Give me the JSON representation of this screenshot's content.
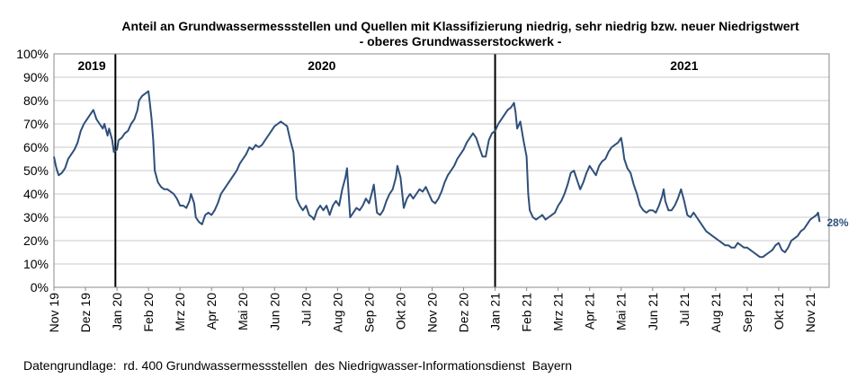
{
  "chart_data": {
    "type": "line",
    "title": "Anteil an Grundwassermessstellen und Quellen mit Klassifizierung niedrig, sehr niedrig bzw. neuer Niedrigstwert",
    "subtitle": "- oberes Grundwasserstockwerk -",
    "xlabel": "",
    "ylabel": "",
    "ylim": [
      0,
      100
    ],
    "yticks": [
      "0%",
      "10%",
      "20%",
      "30%",
      "40%",
      "50%",
      "60%",
      "70%",
      "80%",
      "90%",
      "100%"
    ],
    "xticks": [
      "Nov 19",
      "Dez 19",
      "Jan 20",
      "Feb 20",
      "Mrz 20",
      "Apr 20",
      "Mai 20",
      "Jun 20",
      "Jul 20",
      "Aug 20",
      "Sep 20",
      "Okt 20",
      "Nov 20",
      "Dez 20",
      "Jan 21",
      "Feb 21",
      "Mrz 21",
      "Apr 21",
      "Mai 21",
      "Jun 21",
      "Jul 21",
      "Aug 21",
      "Sep 21",
      "Okt 21",
      "Nov 21"
    ],
    "x_unit": "months since 2019-11-01",
    "year_markers": [
      {
        "label": "2019",
        "x": 1.95
      },
      {
        "label": "2020",
        "x": 14.0
      }
    ],
    "year_labels": [
      {
        "label": "2019",
        "x": 1.2
      },
      {
        "label": "2020",
        "x": 8.5
      },
      {
        "label": "2021",
        "x": 20.0
      }
    ],
    "end_label": "28%",
    "grid": true,
    "color": "#2f4f7a",
    "series": [
      {
        "name": "",
        "points": [
          [
            0.0,
            56
          ],
          [
            0.06,
            52
          ],
          [
            0.1,
            50
          ],
          [
            0.15,
            48
          ],
          [
            0.25,
            49
          ],
          [
            0.35,
            51
          ],
          [
            0.45,
            55
          ],
          [
            0.55,
            57
          ],
          [
            0.65,
            59
          ],
          [
            0.75,
            62
          ],
          [
            0.85,
            67
          ],
          [
            0.95,
            70
          ],
          [
            1.05,
            72
          ],
          [
            1.15,
            74
          ],
          [
            1.25,
            76
          ],
          [
            1.35,
            72
          ],
          [
            1.45,
            70
          ],
          [
            1.55,
            68
          ],
          [
            1.6,
            70
          ],
          [
            1.7,
            65
          ],
          [
            1.75,
            68
          ],
          [
            1.85,
            63
          ],
          [
            1.9,
            58
          ],
          [
            2.0,
            59
          ],
          [
            2.05,
            63
          ],
          [
            2.15,
            64
          ],
          [
            2.25,
            66
          ],
          [
            2.35,
            67
          ],
          [
            2.45,
            70
          ],
          [
            2.55,
            72
          ],
          [
            2.65,
            76
          ],
          [
            2.7,
            80
          ],
          [
            2.8,
            82
          ],
          [
            2.9,
            83
          ],
          [
            3.0,
            84
          ],
          [
            3.05,
            78
          ],
          [
            3.1,
            72
          ],
          [
            3.15,
            63
          ],
          [
            3.2,
            50
          ],
          [
            3.3,
            45
          ],
          [
            3.4,
            43
          ],
          [
            3.5,
            42
          ],
          [
            3.6,
            42
          ],
          [
            3.7,
            41
          ],
          [
            3.8,
            40
          ],
          [
            3.9,
            38
          ],
          [
            4.0,
            35
          ],
          [
            4.1,
            35
          ],
          [
            4.2,
            34
          ],
          [
            4.3,
            37
          ],
          [
            4.35,
            40
          ],
          [
            4.45,
            36
          ],
          [
            4.5,
            30
          ],
          [
            4.6,
            28
          ],
          [
            4.7,
            27
          ],
          [
            4.8,
            31
          ],
          [
            4.9,
            32
          ],
          [
            5.0,
            31
          ],
          [
            5.1,
            33
          ],
          [
            5.2,
            36
          ],
          [
            5.3,
            40
          ],
          [
            5.4,
            42
          ],
          [
            5.5,
            44
          ],
          [
            5.6,
            46
          ],
          [
            5.7,
            48
          ],
          [
            5.8,
            50
          ],
          [
            5.9,
            53
          ],
          [
            6.0,
            55
          ],
          [
            6.1,
            57
          ],
          [
            6.2,
            60
          ],
          [
            6.3,
            59
          ],
          [
            6.4,
            61
          ],
          [
            6.5,
            60
          ],
          [
            6.6,
            61
          ],
          [
            6.7,
            63
          ],
          [
            6.8,
            65
          ],
          [
            6.9,
            67
          ],
          [
            7.0,
            69
          ],
          [
            7.1,
            70
          ],
          [
            7.2,
            71
          ],
          [
            7.3,
            70
          ],
          [
            7.4,
            69
          ],
          [
            7.5,
            63
          ],
          [
            7.6,
            58
          ],
          [
            7.65,
            48
          ],
          [
            7.7,
            38
          ],
          [
            7.8,
            35
          ],
          [
            7.9,
            33
          ],
          [
            8.0,
            35
          ],
          [
            8.1,
            31
          ],
          [
            8.2,
            30
          ],
          [
            8.25,
            29
          ],
          [
            8.35,
            33
          ],
          [
            8.45,
            35
          ],
          [
            8.55,
            33
          ],
          [
            8.65,
            35
          ],
          [
            8.75,
            31
          ],
          [
            8.85,
            35
          ],
          [
            8.95,
            37
          ],
          [
            9.05,
            35
          ],
          [
            9.15,
            42
          ],
          [
            9.25,
            47
          ],
          [
            9.3,
            51
          ],
          [
            9.4,
            30
          ],
          [
            9.5,
            32
          ],
          [
            9.6,
            34
          ],
          [
            9.7,
            33
          ],
          [
            9.8,
            35
          ],
          [
            9.9,
            38
          ],
          [
            10.0,
            36
          ],
          [
            10.1,
            41
          ],
          [
            10.15,
            44
          ],
          [
            10.25,
            32
          ],
          [
            10.35,
            31
          ],
          [
            10.45,
            33
          ],
          [
            10.55,
            37
          ],
          [
            10.65,
            40
          ],
          [
            10.75,
            42
          ],
          [
            10.85,
            47
          ],
          [
            10.9,
            52
          ],
          [
            11.0,
            47
          ],
          [
            11.1,
            34
          ],
          [
            11.2,
            38
          ],
          [
            11.3,
            40
          ],
          [
            11.4,
            38
          ],
          [
            11.5,
            40
          ],
          [
            11.6,
            42
          ],
          [
            11.7,
            41
          ],
          [
            11.8,
            43
          ],
          [
            11.9,
            40
          ],
          [
            12.0,
            37
          ],
          [
            12.1,
            36
          ],
          [
            12.2,
            38
          ],
          [
            12.3,
            41
          ],
          [
            12.4,
            45
          ],
          [
            12.5,
            48
          ],
          [
            12.6,
            50
          ],
          [
            12.7,
            52
          ],
          [
            12.8,
            55
          ],
          [
            12.9,
            57
          ],
          [
            13.0,
            59
          ],
          [
            13.1,
            62
          ],
          [
            13.2,
            64
          ],
          [
            13.3,
            66
          ],
          [
            13.4,
            64
          ],
          [
            13.5,
            60
          ],
          [
            13.6,
            56
          ],
          [
            13.7,
            56
          ],
          [
            13.8,
            63
          ],
          [
            13.9,
            66
          ],
          [
            14.0,
            67
          ],
          [
            14.1,
            70
          ],
          [
            14.2,
            72
          ],
          [
            14.3,
            74
          ],
          [
            14.4,
            76
          ],
          [
            14.5,
            77
          ],
          [
            14.6,
            79
          ],
          [
            14.65,
            75
          ],
          [
            14.7,
            68
          ],
          [
            14.8,
            71
          ],
          [
            14.9,
            63
          ],
          [
            15.0,
            56
          ],
          [
            15.05,
            40
          ],
          [
            15.1,
            33
          ],
          [
            15.2,
            30
          ],
          [
            15.3,
            29
          ],
          [
            15.4,
            30
          ],
          [
            15.5,
            31
          ],
          [
            15.6,
            29
          ],
          [
            15.7,
            30
          ],
          [
            15.8,
            31
          ],
          [
            15.9,
            32
          ],
          [
            16.0,
            35
          ],
          [
            16.1,
            37
          ],
          [
            16.2,
            40
          ],
          [
            16.3,
            44
          ],
          [
            16.4,
            49
          ],
          [
            16.5,
            50
          ],
          [
            16.6,
            46
          ],
          [
            16.7,
            42
          ],
          [
            16.8,
            45
          ],
          [
            16.9,
            49
          ],
          [
            17.0,
            52
          ],
          [
            17.1,
            50
          ],
          [
            17.2,
            48
          ],
          [
            17.3,
            52
          ],
          [
            17.4,
            54
          ],
          [
            17.5,
            55
          ],
          [
            17.6,
            58
          ],
          [
            17.7,
            60
          ],
          [
            17.8,
            61
          ],
          [
            17.9,
            62
          ],
          [
            18.0,
            64
          ],
          [
            18.05,
            60
          ],
          [
            18.1,
            55
          ],
          [
            18.2,
            51
          ],
          [
            18.3,
            49
          ],
          [
            18.4,
            44
          ],
          [
            18.5,
            40
          ],
          [
            18.6,
            35
          ],
          [
            18.7,
            33
          ],
          [
            18.8,
            32
          ],
          [
            18.9,
            33
          ],
          [
            19.0,
            33
          ],
          [
            19.1,
            32
          ],
          [
            19.2,
            35
          ],
          [
            19.3,
            39
          ],
          [
            19.35,
            42
          ],
          [
            19.4,
            37
          ],
          [
            19.5,
            33
          ],
          [
            19.6,
            33
          ],
          [
            19.7,
            35
          ],
          [
            19.8,
            38
          ],
          [
            19.9,
            42
          ],
          [
            20.0,
            37
          ],
          [
            20.1,
            31
          ],
          [
            20.2,
            30
          ],
          [
            20.3,
            32
          ],
          [
            20.4,
            30
          ],
          [
            20.5,
            28
          ],
          [
            20.6,
            26
          ],
          [
            20.7,
            24
          ],
          [
            20.8,
            23
          ],
          [
            20.9,
            22
          ],
          [
            21.0,
            21
          ],
          [
            21.1,
            20
          ],
          [
            21.2,
            19
          ],
          [
            21.3,
            18
          ],
          [
            21.4,
            18
          ],
          [
            21.5,
            17
          ],
          [
            21.6,
            17
          ],
          [
            21.7,
            19
          ],
          [
            21.8,
            18
          ],
          [
            21.9,
            17
          ],
          [
            22.0,
            17
          ],
          [
            22.1,
            16
          ],
          [
            22.2,
            15
          ],
          [
            22.3,
            14
          ],
          [
            22.4,
            13
          ],
          [
            22.5,
            13
          ],
          [
            22.6,
            14
          ],
          [
            22.7,
            15
          ],
          [
            22.8,
            16
          ],
          [
            22.9,
            18
          ],
          [
            23.0,
            19
          ],
          [
            23.1,
            16
          ],
          [
            23.2,
            15
          ],
          [
            23.3,
            17
          ],
          [
            23.4,
            20
          ],
          [
            23.5,
            21
          ],
          [
            23.6,
            22
          ],
          [
            23.7,
            24
          ],
          [
            23.8,
            25
          ],
          [
            23.9,
            27
          ],
          [
            24.0,
            29
          ],
          [
            24.1,
            30
          ],
          [
            24.2,
            31
          ],
          [
            24.25,
            32
          ],
          [
            24.3,
            28
          ]
        ]
      }
    ]
  },
  "footnote": "Datengrundlage:  rd. 400 Grundwassermessstellen  des Niedrigwasser-Informationsdienst  Bayern"
}
